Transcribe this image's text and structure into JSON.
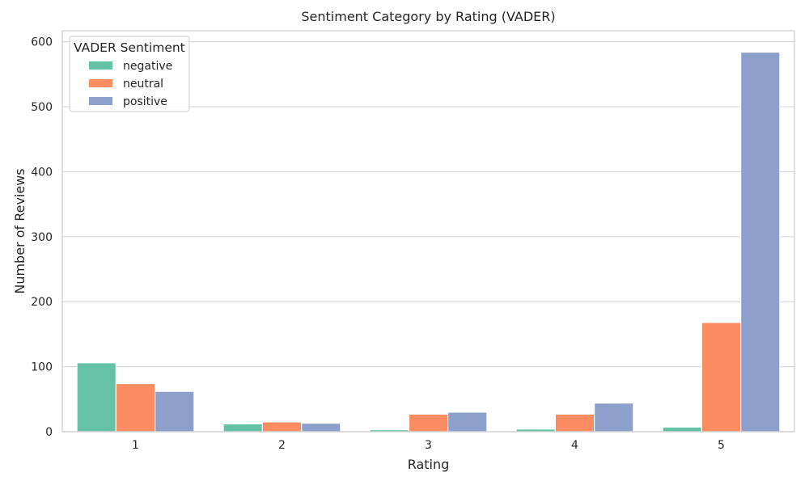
{
  "chart_data": {
    "type": "bar",
    "title": "Sentiment Category by Rating (VADER)",
    "xlabel": "Rating",
    "ylabel": "Number of Reviews",
    "categories": [
      "1",
      "2",
      "3",
      "4",
      "5"
    ],
    "ylim": [
      0,
      617
    ],
    "yticks": [
      0,
      100,
      200,
      300,
      400,
      500,
      600
    ],
    "grid": true,
    "legend": {
      "title": "VADER Sentiment",
      "placement": "top-left"
    },
    "series": [
      {
        "name": "negative",
        "color": "#66c2a5",
        "values": [
          106,
          12,
          3,
          4,
          7
        ]
      },
      {
        "name": "neutral",
        "color": "#fc8d62",
        "values": [
          74,
          15,
          27,
          27,
          168
        ]
      },
      {
        "name": "positive",
        "color": "#8da0cb",
        "values": [
          62,
          13,
          30,
          44,
          584
        ]
      }
    ]
  }
}
